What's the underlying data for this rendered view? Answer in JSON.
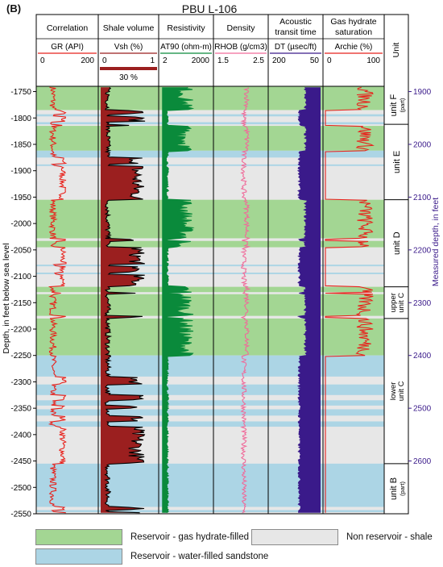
{
  "panel_label": "(B)",
  "title": "PBU L-106",
  "colors": {
    "gas": "#a3d693",
    "water": "#acd5e5",
    "shale": "#e7e7e7",
    "gr": "#e8221c",
    "vsh": "#9b1f1f",
    "res": "#0a8a3b",
    "rhob": "#f06b9a",
    "dt": "#3a1a8a",
    "sgh": "#e8221c"
  },
  "chart_data": {
    "type": "well-log",
    "ylabel": "Depth, in feet below sea level",
    "ylabel_right": "Measured depth, in feet",
    "depth_range": [
      -1740,
      -2550
    ],
    "depth_ticks": [
      -1750,
      -1800,
      -1850,
      -1900,
      -1950,
      -2000,
      -2050,
      -2100,
      -2150,
      -2200,
      -2250,
      -2300,
      -2350,
      -2400,
      -2450,
      -2500,
      -2550
    ],
    "md_ticks": [
      1900,
      2000,
      2100,
      2200,
      2300,
      2400,
      2500,
      2600
    ],
    "md_offset": 150,
    "tracks": [
      {
        "title": [
          "Correlation"
        ],
        "curve": "GR (API)",
        "scale": [
          "0",
          "200"
        ],
        "color": "#e8221c",
        "key": "gr"
      },
      {
        "title": [
          "Shale volume"
        ],
        "curve": "Vsh (%)",
        "scale": [
          "0",
          "1"
        ],
        "color": "#9b1f1f",
        "key": "vsh",
        "cutoff_label": "30 %"
      },
      {
        "title": [
          "Resistivity"
        ],
        "curve": "AT90 (ohm-m)",
        "scale": [
          "2",
          "2000"
        ],
        "color": "#0a8a3b",
        "key": "res"
      },
      {
        "title": [
          "Density"
        ],
        "curve": "RHOB (g/cm3)",
        "scale": [
          "1.5",
          "2.5"
        ],
        "color": "#f06b9a",
        "key": "rhob"
      },
      {
        "title": [
          "Acoustic",
          "transit time"
        ],
        "curve": "DT (µsec/ft)",
        "scale": [
          "200",
          "50"
        ],
        "color": "#3a1a8a",
        "key": "dt"
      },
      {
        "title": [
          "Gas hydrate",
          "saturation"
        ],
        "curve": "Archie (%)",
        "scale": [
          "0",
          "100"
        ],
        "color": "#e8221c",
        "key": "sgh"
      }
    ],
    "unit_header": "Unit",
    "units": [
      {
        "label": "unit F",
        "sub": "(part)",
        "top": -1740,
        "base": -1812
      },
      {
        "label": "unit E",
        "sub": "",
        "top": -1812,
        "base": -1955
      },
      {
        "label": "unit D",
        "sub": "",
        "top": -1955,
        "base": -2120
      },
      {
        "label": "upper unit C",
        "sub": "",
        "top": -2120,
        "base": -2180
      },
      {
        "label": "lower unit C",
        "sub": "",
        "top": -2180,
        "base": -2455
      },
      {
        "label": "unit B",
        "sub": "(part)",
        "top": -2455,
        "base": -2550
      }
    ],
    "zones": [
      {
        "type": "gas",
        "top": -1740,
        "base": -1785
      },
      {
        "type": "water",
        "top": -1793,
        "base": -1797
      },
      {
        "type": "water",
        "top": -1808,
        "base": -1812
      },
      {
        "type": "gas",
        "top": -1815,
        "base": -1862
      },
      {
        "type": "water",
        "top": -1862,
        "base": -1875
      },
      {
        "type": "water",
        "top": -1888,
        "base": -1891
      },
      {
        "type": "gas",
        "top": -1955,
        "base": -2028
      },
      {
        "type": "gas",
        "top": -2033,
        "base": -2045
      },
      {
        "type": "water",
        "top": -2078,
        "base": -2081
      },
      {
        "type": "water",
        "top": -2093,
        "base": -2096
      },
      {
        "type": "gas",
        "top": -2120,
        "base": -2130
      },
      {
        "type": "gas",
        "top": -2134,
        "base": -2175
      },
      {
        "type": "gas",
        "top": -2180,
        "base": -2250
      },
      {
        "type": "water",
        "top": -2250,
        "base": -2290
      },
      {
        "type": "water",
        "top": -2305,
        "base": -2325
      },
      {
        "type": "water",
        "top": -2335,
        "base": -2345
      },
      {
        "type": "water",
        "top": -2352,
        "base": -2364
      },
      {
        "type": "water",
        "top": -2375,
        "base": -2385
      },
      {
        "type": "water",
        "top": -2455,
        "base": -2537
      },
      {
        "type": "water",
        "top": -2543,
        "base": -2547
      }
    ],
    "legend": [
      {
        "type": "gas",
        "label": "Reservoir - gas hydrate-filled sandstone"
      },
      {
        "type": "shale",
        "label": "Non reservoir - shale"
      },
      {
        "type": "water",
        "label": "Reservoir - water-filled sandstone"
      }
    ]
  }
}
